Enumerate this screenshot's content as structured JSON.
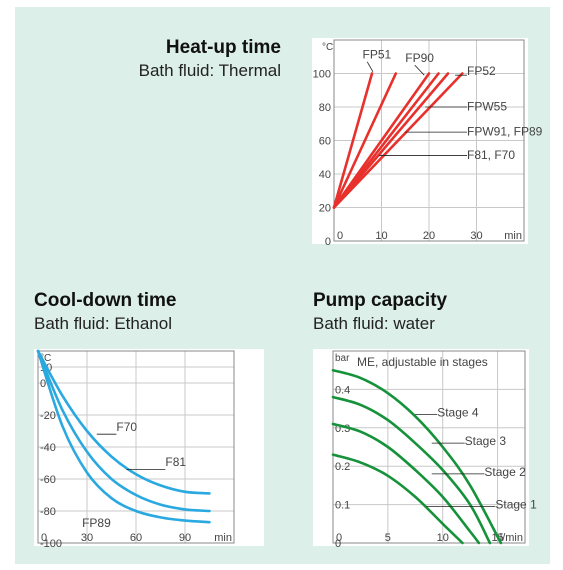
{
  "chart_data": [
    {
      "type": "line",
      "title": "Heat-up time",
      "subtitle": "Bath fluid: Thermal",
      "xlabel": "min",
      "ylabel": "°C",
      "xlim": [
        0,
        40
      ],
      "ylim": [
        0,
        120
      ],
      "x_ticks": [
        0,
        10,
        20,
        30
      ],
      "y_ticks": [
        0,
        20,
        40,
        60,
        80,
        100
      ],
      "grid": true,
      "color": "#e8302c",
      "series": [
        {
          "name": "FP51",
          "x": [
            0,
            8
          ],
          "y": [
            20,
            100
          ]
        },
        {
          "name": "FP51",
          "x": [
            0,
            13
          ],
          "y": [
            20,
            100
          ]
        },
        {
          "name": "FP90",
          "x": [
            0,
            20
          ],
          "y": [
            20,
            100
          ]
        },
        {
          "name": "FP90",
          "x": [
            0,
            22
          ],
          "y": [
            20,
            100
          ]
        },
        {
          "name": "FPW55",
          "x": [
            0,
            24
          ],
          "y": [
            20,
            100
          ]
        },
        {
          "name": "FP52",
          "x": [
            0,
            27
          ],
          "y": [
            20,
            100
          ]
        }
      ],
      "annotations": [
        {
          "text": "FP51",
          "x": 6,
          "y": 109
        },
        {
          "text": "FP90",
          "x": 15,
          "y": 107
        },
        {
          "text": "FP52",
          "x": 28,
          "y": 99
        },
        {
          "text": "FPW55",
          "x": 28,
          "y": 78
        },
        {
          "text": "FPW91, FP89",
          "x": 28,
          "y": 63
        },
        {
          "text": "F81, F70",
          "x": 28,
          "y": 49
        }
      ]
    },
    {
      "type": "line",
      "title": "Cool-down time",
      "subtitle": "Bath fluid: Ethanol",
      "xlabel": "min",
      "ylabel": "°C",
      "xlim": [
        0,
        120
      ],
      "ylim": [
        -100,
        20
      ],
      "x_ticks": [
        0,
        30,
        60,
        90
      ],
      "y_ticks": [
        10,
        0,
        -20,
        -40,
        -60,
        -80,
        -100
      ],
      "grid": true,
      "color": "#2aa8e0",
      "series": [
        {
          "name": "F70",
          "x": [
            0,
            15,
            30,
            45,
            60,
            75,
            90,
            105
          ],
          "y": [
            20,
            -8,
            -30,
            -46,
            -57,
            -64,
            -68,
            -69
          ]
        },
        {
          "name": "F81",
          "x": [
            0,
            15,
            30,
            45,
            60,
            75,
            90,
            105
          ],
          "y": [
            20,
            -17,
            -43,
            -60,
            -70,
            -76,
            -79,
            -80
          ]
        },
        {
          "name": "FP89",
          "x": [
            0,
            15,
            30,
            45,
            60,
            75,
            90,
            105
          ],
          "y": [
            20,
            -27,
            -56,
            -72,
            -80,
            -84,
            -86,
            -87
          ]
        }
      ],
      "annotations": [
        {
          "text": "F70",
          "x": 48,
          "y": -30
        },
        {
          "text": "F81",
          "x": 78,
          "y": -52
        },
        {
          "text": "FP89",
          "x": 27,
          "y": -90
        }
      ]
    },
    {
      "type": "line",
      "title": "Pump capacity",
      "subtitle": "Bath fluid: water",
      "xlabel": "l/min",
      "ylabel": "bar",
      "xlim": [
        0,
        17.5
      ],
      "ylim": [
        0,
        0.5
      ],
      "x_ticks": [
        0,
        5,
        10,
        15
      ],
      "y_ticks": [
        0,
        0.1,
        0.2,
        0.3,
        0.4
      ],
      "grid": true,
      "color": "#15923a",
      "series_note": "ME, adjustable in stages",
      "series": [
        {
          "name": "Stage 1",
          "x": [
            0,
            2.5,
            5,
            7.5,
            10,
            11.8
          ],
          "y": [
            0.23,
            0.21,
            0.175,
            0.12,
            0.05,
            0
          ]
        },
        {
          "name": "Stage 2",
          "x": [
            0,
            2.5,
            5,
            7.5,
            10,
            12.5,
            13.3
          ],
          "y": [
            0.31,
            0.29,
            0.25,
            0.19,
            0.12,
            0.03,
            0
          ]
        },
        {
          "name": "Stage 3",
          "x": [
            0,
            2.5,
            5,
            7.5,
            10,
            12.5,
            14.3
          ],
          "y": [
            0.38,
            0.36,
            0.32,
            0.26,
            0.19,
            0.1,
            0
          ]
        },
        {
          "name": "Stage 4",
          "x": [
            0,
            2.5,
            5,
            7.5,
            10,
            12.5,
            15.3
          ],
          "y": [
            0.45,
            0.43,
            0.39,
            0.33,
            0.25,
            0.15,
            0
          ]
        }
      ],
      "annotations": [
        {
          "text": "Stage 4",
          "x": 9.5,
          "y": 0.33
        },
        {
          "text": "Stage 3",
          "x": 12.0,
          "y": 0.255
        },
        {
          "text": "Stage 2",
          "x": 13.8,
          "y": 0.175
        },
        {
          "text": "Stage 1",
          "x": 14.8,
          "y": 0.09
        }
      ]
    }
  ]
}
